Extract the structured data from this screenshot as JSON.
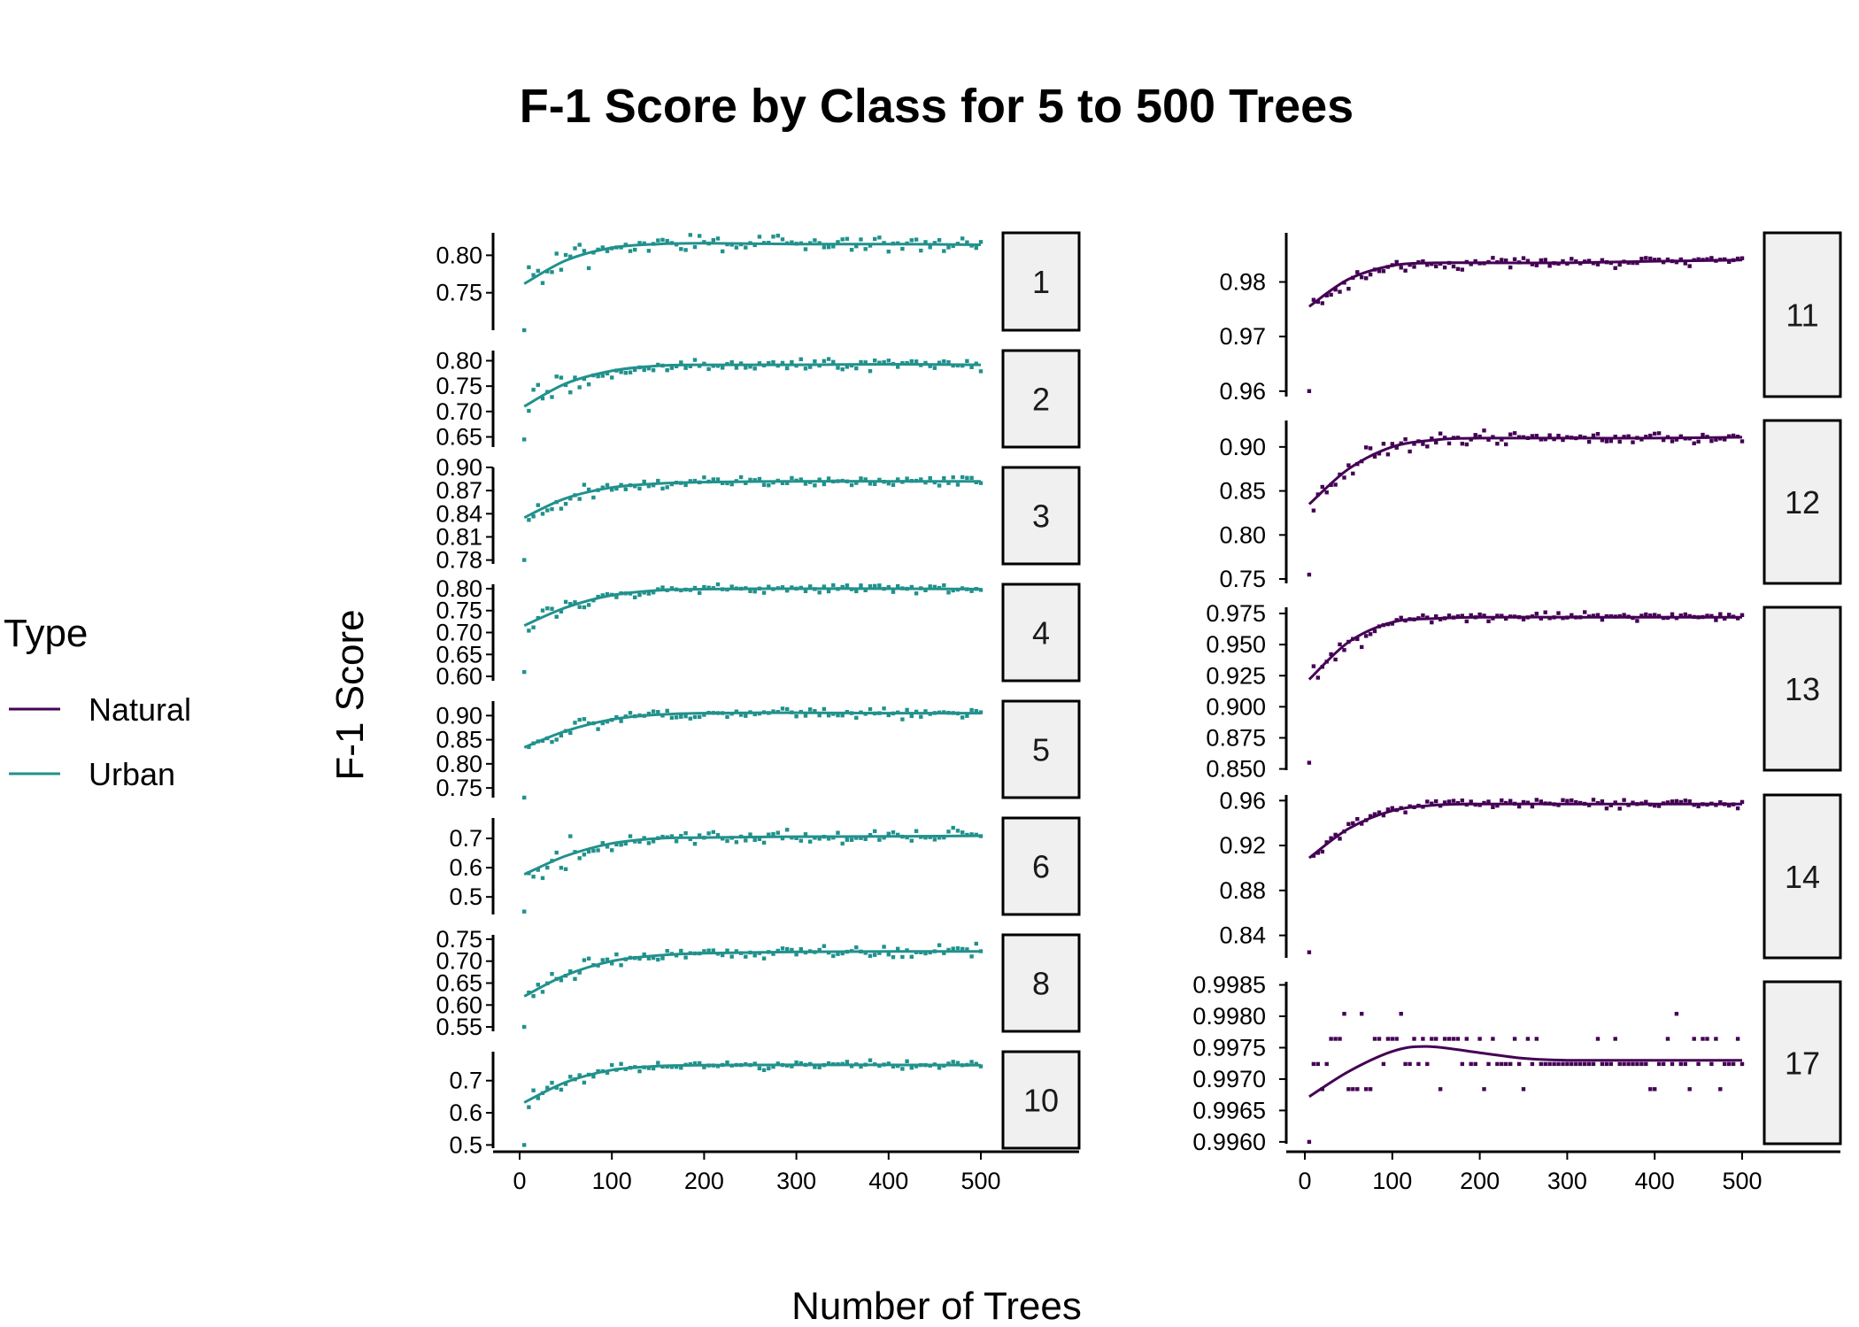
{
  "title": "F-1 Score by Class for 5 to 500 Trees",
  "xlabel": "Number of Trees",
  "ylabel": "F-1 Score",
  "legend": {
    "title": "Type",
    "items": [
      {
        "label": "Natural",
        "color": "#440154"
      },
      {
        "label": "Urban",
        "color": "#21918c"
      }
    ]
  },
  "chart_data": {
    "type": "scatter",
    "title": "F-1 Score by Class for 5 to 500 Trees",
    "xlabel": "Number of Trees",
    "ylabel": "F-1 Score",
    "facet_by": "class",
    "scales": "free_y",
    "smoother": true,
    "x_ticks": [
      0,
      100,
      200,
      300,
      400,
      500
    ],
    "xlim": [
      0,
      500
    ],
    "grid": false,
    "legend_position": "left",
    "panels": [
      {
        "label": "1",
        "type": "Urban",
        "ylim": [
          0.7,
          0.83
        ],
        "yticks": [
          "0.75",
          "0.80"
        ],
        "start": 0.7,
        "plateau": 0.815,
        "noise": 0.006,
        "smooth": [
          [
            5,
            0.762
          ],
          [
            50,
            0.793
          ],
          [
            100,
            0.81
          ],
          [
            150,
            0.815
          ],
          [
            200,
            0.816
          ],
          [
            300,
            0.815
          ],
          [
            400,
            0.815
          ],
          [
            500,
            0.814
          ]
        ]
      },
      {
        "label": "2",
        "type": "Urban",
        "ylim": [
          0.63,
          0.82
        ],
        "yticks": [
          "0.65",
          "0.70",
          "0.75",
          "0.80"
        ],
        "start": 0.645,
        "plateau": 0.792,
        "noise": 0.008,
        "smooth": [
          [
            5,
            0.71
          ],
          [
            50,
            0.755
          ],
          [
            100,
            0.78
          ],
          [
            150,
            0.79
          ],
          [
            200,
            0.792
          ],
          [
            300,
            0.792
          ],
          [
            400,
            0.793
          ],
          [
            500,
            0.792
          ]
        ]
      },
      {
        "label": "3",
        "type": "Urban",
        "ylim": [
          0.775,
          0.9
        ],
        "yticks": [
          "0.78",
          "0.81",
          "0.84",
          "0.87",
          "0.90"
        ],
        "start": 0.78,
        "plateau": 0.882,
        "noise": 0.004,
        "smooth": [
          [
            5,
            0.835
          ],
          [
            50,
            0.86
          ],
          [
            100,
            0.874
          ],
          [
            150,
            0.879
          ],
          [
            200,
            0.881
          ],
          [
            300,
            0.882
          ],
          [
            400,
            0.882
          ],
          [
            500,
            0.882
          ]
        ]
      },
      {
        "label": "4",
        "type": "Urban",
        "ylim": [
          0.59,
          0.81
        ],
        "yticks": [
          "0.60",
          "0.65",
          "0.70",
          "0.75",
          "0.80"
        ],
        "start": 0.61,
        "plateau": 0.799,
        "noise": 0.006,
        "smooth": [
          [
            5,
            0.716
          ],
          [
            50,
            0.757
          ],
          [
            100,
            0.785
          ],
          [
            150,
            0.796
          ],
          [
            200,
            0.799
          ],
          [
            300,
            0.8
          ],
          [
            400,
            0.8
          ],
          [
            500,
            0.799
          ]
        ]
      },
      {
        "label": "5",
        "type": "Urban",
        "ylim": [
          0.73,
          0.93
        ],
        "yticks": [
          "0.75",
          "0.80",
          "0.85",
          "0.90"
        ],
        "start": 0.73,
        "plateau": 0.905,
        "noise": 0.006,
        "smooth": [
          [
            5,
            0.834
          ],
          [
            50,
            0.868
          ],
          [
            100,
            0.892
          ],
          [
            150,
            0.902
          ],
          [
            200,
            0.905
          ],
          [
            300,
            0.906
          ],
          [
            400,
            0.905
          ],
          [
            500,
            0.905
          ]
        ]
      },
      {
        "label": "6",
        "type": "Urban",
        "ylim": [
          0.44,
          0.77
        ],
        "yticks": [
          "0.5",
          "0.6",
          "0.7"
        ],
        "start": 0.45,
        "plateau": 0.705,
        "noise": 0.014,
        "smooth": [
          [
            5,
            0.577
          ],
          [
            50,
            0.64
          ],
          [
            100,
            0.683
          ],
          [
            150,
            0.7
          ],
          [
            200,
            0.703
          ],
          [
            300,
            0.706
          ],
          [
            400,
            0.707
          ],
          [
            500,
            0.709
          ]
        ]
      },
      {
        "label": "8",
        "type": "Urban",
        "ylim": [
          0.54,
          0.76
        ],
        "yticks": [
          "0.55",
          "0.60",
          "0.65",
          "0.70",
          "0.75"
        ],
        "start": 0.55,
        "plateau": 0.722,
        "noise": 0.008,
        "smooth": [
          [
            5,
            0.62
          ],
          [
            50,
            0.668
          ],
          [
            100,
            0.7
          ],
          [
            150,
            0.713
          ],
          [
            200,
            0.718
          ],
          [
            300,
            0.721
          ],
          [
            400,
            0.722
          ],
          [
            500,
            0.722
          ]
        ]
      },
      {
        "label": "10",
        "type": "Urban",
        "ylim": [
          0.49,
          0.79
        ],
        "yticks": [
          "0.5",
          "0.6",
          "0.7"
        ],
        "start": 0.5,
        "plateau": 0.748,
        "noise": 0.008,
        "smooth": [
          [
            5,
            0.632
          ],
          [
            50,
            0.695
          ],
          [
            100,
            0.733
          ],
          [
            150,
            0.745
          ],
          [
            200,
            0.748
          ],
          [
            300,
            0.749
          ],
          [
            400,
            0.749
          ],
          [
            500,
            0.748
          ]
        ]
      },
      {
        "label": "11",
        "type": "Natural",
        "ylim": [
          0.959,
          0.989
        ],
        "yticks": [
          "0.96",
          "0.97",
          "0.98"
        ],
        "start": 0.96,
        "plateau": 0.9835,
        "noise": 0.0006,
        "smooth": [
          [
            5,
            0.9755
          ],
          [
            50,
            0.9805
          ],
          [
            100,
            0.983
          ],
          [
            150,
            0.9835
          ],
          [
            200,
            0.9835
          ],
          [
            300,
            0.9835
          ],
          [
            400,
            0.9838
          ],
          [
            500,
            0.984
          ]
        ]
      },
      {
        "label": "12",
        "type": "Natural",
        "ylim": [
          0.745,
          0.93
        ],
        "yticks": [
          "0.75",
          "0.80",
          "0.85",
          "0.90"
        ],
        "start": 0.755,
        "plateau": 0.91,
        "noise": 0.004,
        "smooth": [
          [
            5,
            0.835
          ],
          [
            50,
            0.875
          ],
          [
            100,
            0.9
          ],
          [
            150,
            0.908
          ],
          [
            200,
            0.91
          ],
          [
            300,
            0.91
          ],
          [
            400,
            0.91
          ],
          [
            500,
            0.911
          ]
        ]
      },
      {
        "label": "13",
        "type": "Natural",
        "ylim": [
          0.849,
          0.98
        ],
        "yticks": [
          "0.850",
          "0.875",
          "0.900",
          "0.925",
          "0.950",
          "0.975"
        ],
        "start": 0.855,
        "plateau": 0.972,
        "noise": 0.002,
        "smooth": [
          [
            5,
            0.922
          ],
          [
            50,
            0.952
          ],
          [
            100,
            0.968
          ],
          [
            150,
            0.971
          ],
          [
            200,
            0.972
          ],
          [
            300,
            0.972
          ],
          [
            400,
            0.972
          ],
          [
            500,
            0.972
          ]
        ]
      },
      {
        "label": "14",
        "type": "Natural",
        "ylim": [
          0.82,
          0.965
        ],
        "yticks": [
          "0.84",
          "0.88",
          "0.92",
          "0.96"
        ],
        "start": 0.825,
        "plateau": 0.957,
        "noise": 0.0025,
        "smooth": [
          [
            5,
            0.909
          ],
          [
            50,
            0.935
          ],
          [
            100,
            0.951
          ],
          [
            150,
            0.956
          ],
          [
            200,
            0.957
          ],
          [
            300,
            0.957
          ],
          [
            400,
            0.957
          ],
          [
            500,
            0.957
          ]
        ]
      },
      {
        "label": "17",
        "type": "Natural",
        "ylim": [
          0.99597,
          0.99855
        ],
        "yticks": [
          "0.9960",
          "0.9965",
          "0.9970",
          "0.9975",
          "0.9980",
          "0.9985"
        ],
        "start": 0.996,
        "plateau": 0.9973,
        "noise": 0.0003,
        "quantized": true,
        "smooth": [
          [
            5,
            0.99672
          ],
          [
            50,
            0.99712
          ],
          [
            100,
            0.99744
          ],
          [
            140,
            0.99752
          ],
          [
            200,
            0.99742
          ],
          [
            250,
            0.99733
          ],
          [
            300,
            0.9973
          ],
          [
            400,
            0.9973
          ],
          [
            500,
            0.9973
          ]
        ]
      }
    ]
  }
}
